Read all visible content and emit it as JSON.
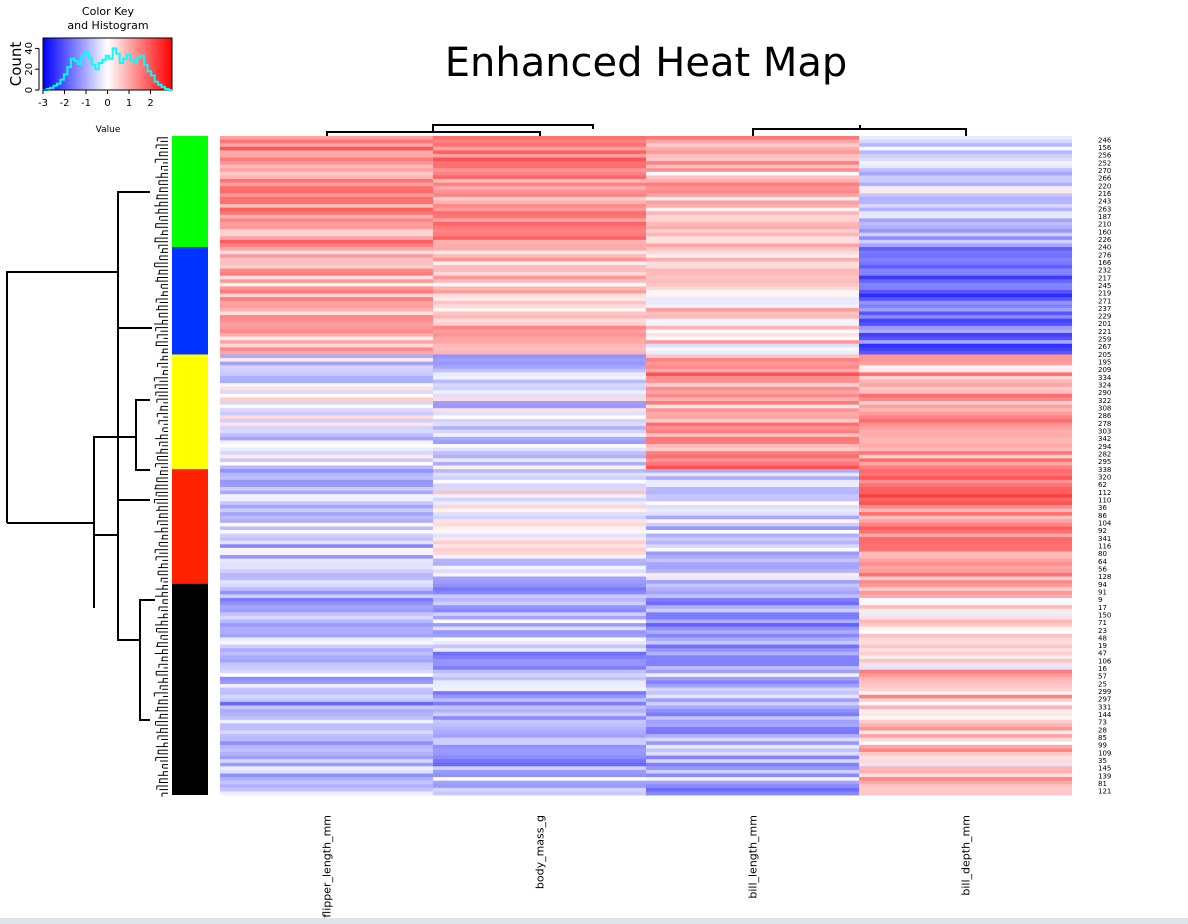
{
  "title": "Enhanced Heat Map",
  "color_key": {
    "title_line1": "Color Key",
    "title_line2": "and Histogram",
    "ylabel": "Count",
    "xlabel": "Value",
    "x_ticks": [
      "-3",
      "-2",
      "-1",
      "0",
      "1",
      "2"
    ],
    "y_ticks": [
      "0",
      "20",
      "40"
    ],
    "colors": {
      "low": "#0000ff",
      "mid": "#ffffff",
      "high": "#ff0000",
      "histogram": "#00ffff"
    }
  },
  "chart_data": {
    "type": "heatmap",
    "title": "Enhanced Heat Map",
    "columns": [
      "flipper_length_mm",
      "body_mass_g",
      "bill_length_mm",
      "bill_depth_mm"
    ],
    "value_range": [
      -3,
      3
    ],
    "color_scale": [
      "#0000ff",
      "#ffffff",
      "#ff0000"
    ],
    "row_labels_shown": [
      "246",
      "156",
      "256",
      "252",
      "270",
      "266",
      "220",
      "216",
      "243",
      "263",
      "187",
      "210",
      "160",
      "226",
      "240",
      "276",
      "166",
      "232",
      "217",
      "245",
      "219",
      "271",
      "237",
      "229",
      "201",
      "221",
      "259",
      "267",
      "205",
      "195",
      "209",
      "334",
      "324",
      "290",
      "322",
      "308",
      "286",
      "278",
      "303",
      "342",
      "294",
      "282",
      "295",
      "338",
      "320",
      "62",
      "112",
      "110",
      "36",
      "86",
      "104",
      "92",
      "341",
      "116",
      "80",
      "64",
      "56",
      "128",
      "94",
      "91",
      "9",
      "17",
      "150",
      "71",
      "23",
      "48",
      "19",
      "47",
      "106",
      "16",
      "57",
      "25",
      "299",
      "297",
      "331",
      "144",
      "73",
      "28",
      "85",
      "99",
      "109",
      "35",
      "145",
      "139",
      "81",
      "121"
    ],
    "row_clusters": [
      {
        "color": "#00ff00",
        "rows": 31,
        "profile": [
          1.3,
          1.4,
          0.8,
          -0.6
        ]
      },
      {
        "color": "#0033ff",
        "rows": 30,
        "profile": [
          0.9,
          0.6,
          0.3,
          -1.7
        ]
      },
      {
        "color": "#ffff00",
        "rows": 32,
        "profile": [
          -0.3,
          -0.5,
          1.2,
          1.0
        ]
      },
      {
        "color": "#ff2200",
        "rows": 32,
        "profile": [
          -0.6,
          -0.2,
          -0.6,
          1.4
        ]
      },
      {
        "color": "#000000",
        "rows": 59,
        "profile": [
          -0.9,
          -0.9,
          -1.0,
          0.6
        ]
      }
    ],
    "histogram_counts": [
      0,
      1,
      2,
      4,
      6,
      10,
      15,
      22,
      30,
      28,
      25,
      33,
      36,
      31,
      24,
      20,
      26,
      29,
      33,
      30,
      40,
      35,
      26,
      30,
      34,
      28,
      27,
      31,
      33,
      24,
      18,
      14,
      8,
      5,
      3,
      1,
      0
    ]
  }
}
